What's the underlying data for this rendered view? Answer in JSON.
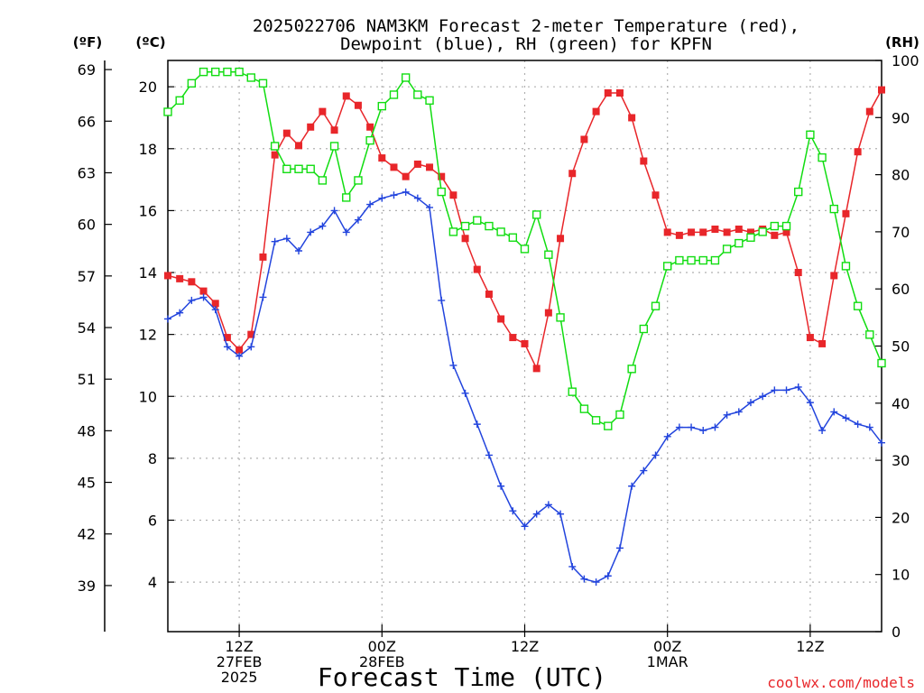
{
  "chart_data": {
    "type": "line",
    "title_line1": "2025022706 NAM3KM Forecast 2-meter Temperature (red),",
    "title_line2": "Dewpoint (blue), RH (green) for KPFN",
    "xlabel": "Forecast Time (UTC)",
    "credit": "coolwx.com/models",
    "unit_f": "(ºF)",
    "unit_c": "(ºC)",
    "unit_rh": "(RH)",
    "xlim": [
      0,
      60
    ],
    "ylim_c": [
      2.4,
      20.85
    ],
    "ylim_rh": [
      0,
      100
    ],
    "grid": true,
    "x_ticks": [
      {
        "x": 6,
        "lines": [
          "12Z",
          "27FEB",
          "2025"
        ]
      },
      {
        "x": 18,
        "lines": [
          "00Z",
          "28FEB",
          ""
        ]
      },
      {
        "x": 30,
        "lines": [
          "12Z",
          "",
          ""
        ]
      },
      {
        "x": 42,
        "lines": [
          "00Z",
          "1MAR",
          ""
        ]
      },
      {
        "x": 54,
        "lines": [
          "12Z",
          "",
          ""
        ]
      }
    ],
    "c_ticks": [
      4,
      6,
      8,
      10,
      12,
      14,
      16,
      18,
      20
    ],
    "c_tick_labels": [
      "4",
      "6",
      "8",
      "10",
      "12",
      "14",
      "16",
      "18",
      "20"
    ],
    "f_ticks": [
      39,
      42,
      45,
      48,
      51,
      54,
      57,
      60,
      63,
      66,
      69
    ],
    "f_tick_labels": [
      "39",
      "42",
      "45",
      "48",
      "51",
      "54",
      "57",
      "60",
      "63",
      "66",
      "69"
    ],
    "rh_ticks": [
      0,
      10,
      20,
      30,
      40,
      50,
      60,
      70,
      80,
      90,
      100
    ],
    "rh_tick_labels": [
      "0",
      "10",
      "20",
      "30",
      "40",
      "50",
      "60",
      "70",
      "80",
      "90",
      "100"
    ],
    "series": [
      {
        "color": "#e8262a",
        "marker": "filled-square",
        "axis": "celsius",
        "values": [
          13.9,
          13.8,
          13.7,
          13.4,
          13.0,
          11.9,
          11.5,
          12.0,
          14.5,
          17.8,
          18.5,
          18.1,
          18.7,
          19.2,
          18.6,
          19.7,
          19.4,
          18.7,
          17.7,
          17.4,
          17.1,
          17.5,
          17.4,
          17.1,
          16.5,
          15.1,
          14.1,
          13.3,
          12.5,
          11.9,
          11.7,
          10.9,
          12.7,
          15.1,
          17.2,
          18.3,
          19.2,
          19.8,
          19.8,
          19.0,
          17.6,
          16.5,
          15.3,
          15.2,
          15.3,
          15.3,
          15.4,
          15.3,
          15.4,
          15.3,
          15.4,
          15.2,
          15.3,
          14.0,
          11.9,
          11.7,
          13.9,
          15.9,
          17.9,
          19.2,
          19.9
        ]
      },
      {
        "color": "#2244dd",
        "marker": "plus",
        "axis": "celsius",
        "values": [
          12.5,
          12.7,
          13.1,
          13.2,
          12.8,
          11.6,
          11.3,
          11.6,
          13.2,
          15.0,
          15.1,
          14.7,
          15.3,
          15.5,
          16.0,
          15.3,
          15.7,
          16.2,
          16.4,
          16.5,
          16.6,
          16.4,
          16.1,
          13.1,
          11.0,
          10.1,
          9.1,
          8.1,
          7.1,
          6.3,
          5.8,
          6.2,
          6.5,
          6.2,
          4.5,
          4.1,
          4.0,
          4.2,
          5.1,
          7.1,
          7.6,
          8.1,
          8.7,
          9.0,
          9.0,
          8.9,
          9.0,
          9.4,
          9.5,
          9.8,
          10.0,
          10.2,
          10.2,
          10.3,
          9.8,
          8.9,
          9.5,
          9.3,
          9.1,
          9.0,
          8.5
        ]
      },
      {
        "color": "#11dd11",
        "marker": "open-square",
        "axis": "rh",
        "values": [
          91,
          93,
          96,
          98,
          98,
          98,
          98,
          97,
          96,
          85,
          81,
          81,
          81,
          79,
          85,
          76,
          79,
          86,
          92,
          94,
          97,
          94,
          93,
          77,
          70,
          71,
          72,
          71,
          70,
          69,
          67,
          73,
          66,
          55,
          42,
          39,
          37,
          36,
          38,
          46,
          53,
          57,
          64,
          65,
          65,
          65,
          65,
          67,
          68,
          69,
          70,
          71,
          71,
          77,
          87,
          83,
          74,
          64,
          57,
          52,
          47
        ]
      }
    ]
  }
}
